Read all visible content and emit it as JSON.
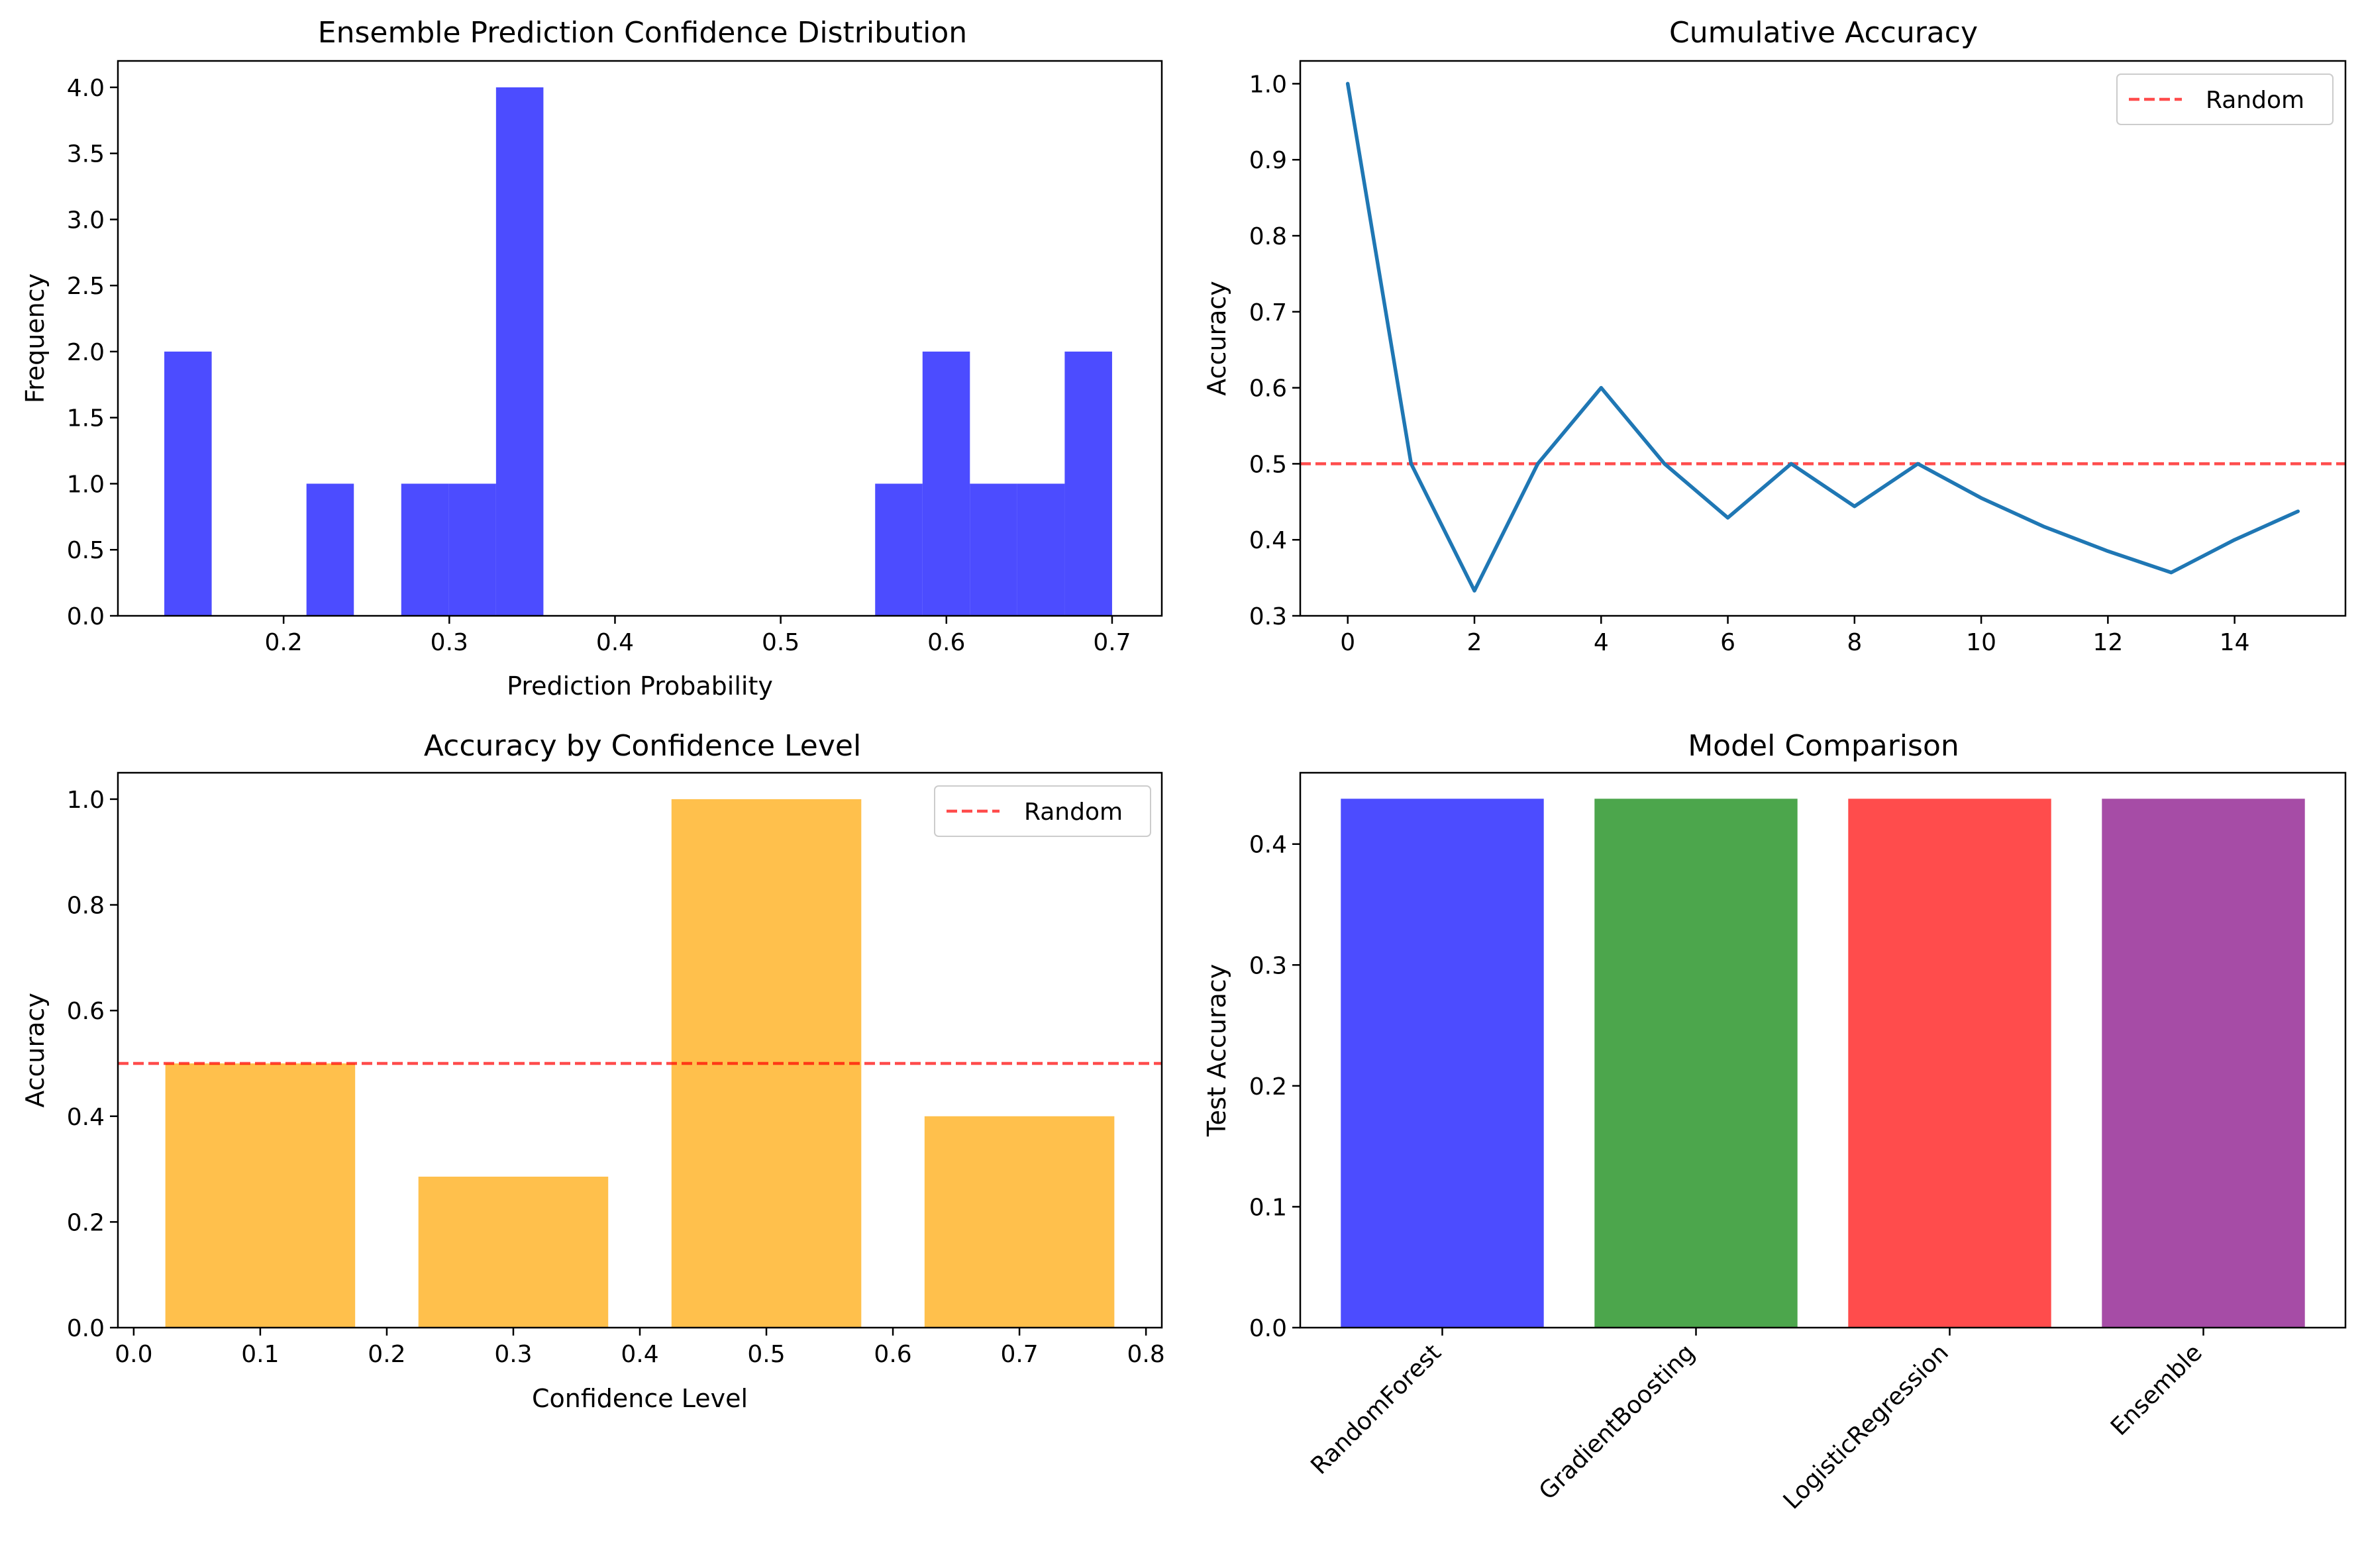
{
  "chart_data": [
    {
      "type": "bar",
      "subtype": "histogram",
      "title": "Ensemble Prediction Confidence Distribution",
      "xlabel": "Prediction Probability",
      "ylabel": "Frequency",
      "xlim": [
        0.1,
        0.73
      ],
      "ylim": [
        0,
        4.2
      ],
      "xticks": [
        0.2,
        0.3,
        0.4,
        0.5,
        0.6,
        0.7
      ],
      "xtick_labels": [
        "0.2",
        "0.3",
        "0.4",
        "0.5",
        "0.6",
        "0.7"
      ],
      "yticks": [
        0,
        0.5,
        1,
        1.5,
        2,
        2.5,
        3,
        3.5,
        4
      ],
      "ytick_labels": [
        "0.0",
        "0.5",
        "1.0",
        "1.5",
        "2.0",
        "2.5",
        "3.0",
        "3.5",
        "4.0"
      ],
      "bin_edges": [
        0.128,
        0.1566,
        0.1852,
        0.2138,
        0.2424,
        0.271,
        0.2996,
        0.3282,
        0.3568,
        0.3854,
        0.414,
        0.4426,
        0.4712,
        0.4998,
        0.5284,
        0.557,
        0.5856,
        0.6142,
        0.6428,
        0.6714,
        0.7
      ],
      "counts": [
        2,
        0,
        0,
        1,
        0,
        1,
        1,
        4,
        0,
        0,
        0,
        0,
        0,
        0,
        0,
        1,
        2,
        1,
        1,
        2
      ],
      "color": "#0000ff",
      "alpha": 0.7
    },
    {
      "type": "line",
      "title": "Cumulative Accuracy",
      "xlabel": "",
      "ylabel": "Accuracy",
      "xlim": [
        -0.75,
        15.75
      ],
      "ylim": [
        0.3,
        1.03
      ],
      "xticks": [
        0,
        2,
        4,
        6,
        8,
        10,
        12,
        14
      ],
      "xtick_labels": [
        "0",
        "2",
        "4",
        "6",
        "8",
        "10",
        "12",
        "14"
      ],
      "yticks": [
        0.3,
        0.4,
        0.5,
        0.6,
        0.7,
        0.8,
        0.9,
        1.0
      ],
      "ytick_labels": [
        "0.3",
        "0.4",
        "0.5",
        "0.6",
        "0.7",
        "0.8",
        "0.9",
        "1.0"
      ],
      "x": [
        0,
        1,
        2,
        3,
        4,
        5,
        6,
        7,
        8,
        9,
        10,
        11,
        12,
        13,
        14,
        15
      ],
      "y": [
        1.0,
        0.5,
        0.333,
        0.5,
        0.6,
        0.5,
        0.429,
        0.5,
        0.444,
        0.5,
        0.455,
        0.417,
        0.385,
        0.357,
        0.4,
        0.4375
      ],
      "line_color": "#1f77b4",
      "hline": {
        "y": 0.5,
        "color": "#ff0000",
        "label": "Random"
      },
      "legend": {
        "position": "top-right",
        "entries": [
          "Random"
        ]
      }
    },
    {
      "type": "bar",
      "title": "Accuracy by Confidence Level",
      "xlabel": "Confidence Level",
      "ylabel": "Accuracy",
      "xlim": [
        -0.0125,
        0.8125
      ],
      "ylim": [
        0,
        1.05
      ],
      "xticks": [
        0.0,
        0.1,
        0.2,
        0.3,
        0.4,
        0.5,
        0.6,
        0.7,
        0.8
      ],
      "xtick_labels": [
        "0.0",
        "0.1",
        "0.2",
        "0.3",
        "0.4",
        "0.5",
        "0.6",
        "0.7",
        "0.8"
      ],
      "yticks": [
        0,
        0.2,
        0.4,
        0.6,
        0.8,
        1.0
      ],
      "ytick_labels": [
        "0.0",
        "0.2",
        "0.4",
        "0.6",
        "0.8",
        "1.0"
      ],
      "x": [
        0.1,
        0.3,
        0.5,
        0.7
      ],
      "bar_width": 0.15,
      "values": [
        0.5,
        0.2857,
        1.0,
        0.4
      ],
      "color": "#ffa500",
      "alpha": 0.7,
      "hline": {
        "y": 0.5,
        "color": "#ff0000",
        "label": "Random"
      },
      "legend": {
        "position": "top-right",
        "entries": [
          "Random"
        ]
      }
    },
    {
      "type": "bar",
      "title": "Model Comparison",
      "xlabel": "",
      "ylabel": "Test Accuracy",
      "categories": [
        "RandomForest",
        "GradientBoosting",
        "LogisticRegression",
        "Ensemble"
      ],
      "values": [
        0.4375,
        0.4375,
        0.4375,
        0.4375
      ],
      "colors": [
        "#0000ff",
        "#008000",
        "#ff0000",
        "#800080"
      ],
      "alpha": 0.7,
      "ylim": [
        0,
        0.459
      ],
      "yticks": [
        0,
        0.1,
        0.2,
        0.3,
        0.4
      ],
      "ytick_labels": [
        "0.0",
        "0.1",
        "0.2",
        "0.3",
        "0.4"
      ],
      "xtick_rotation": 45
    }
  ]
}
